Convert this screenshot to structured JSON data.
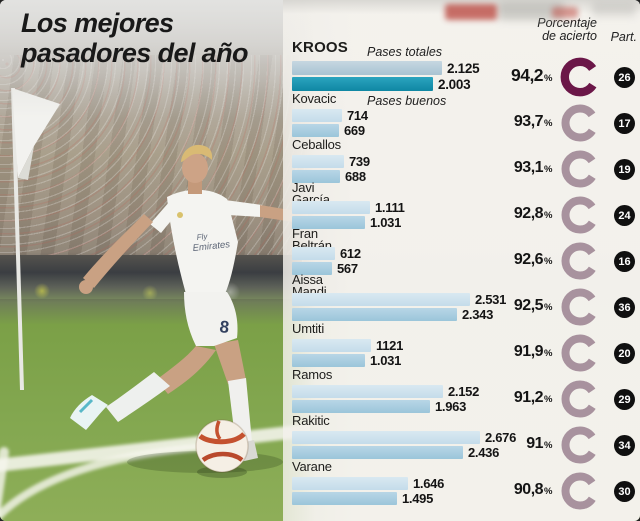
{
  "title": {
    "line1": "Los mejores",
    "line2": "pasadores del año"
  },
  "columns": {
    "pct_line1": "Porcentaje",
    "pct_line2": "de acierto",
    "part": "Part."
  },
  "legend": {
    "total": "Pases totales",
    "good": "Pases buenos"
  },
  "misc": {
    "percent_sign": "%"
  },
  "photo": {
    "jersey_sponsor_line1": "Fly",
    "jersey_sponsor_line2": "Emirates",
    "shorts_number": "8"
  },
  "colors": {
    "panel_bg": "#f3f1ec",
    "bar_total": "#cfe3ee",
    "bar_good": "#a9cee1",
    "bar_total_highlight": "#b9cfdc",
    "bar_good_highlight": "#1f97b1",
    "donut": "#a8929e",
    "donut_highlight": "#6b1748",
    "part_badge": "#101010",
    "text": "#1d1d1b",
    "pitch_green": "#7fa24b",
    "ball_accent": "#c4512f"
  },
  "chart_data": {
    "type": "bar",
    "orientation": "horizontal",
    "title": "Los mejores pasadores del año",
    "series_labels": [
      "Pases totales",
      "Pases buenos"
    ],
    "axis_max": 2700,
    "players": [
      {
        "name": "KROOS",
        "highlight": true,
        "total": 2125,
        "good": 2003,
        "total_display": "2.125",
        "good_display": "2.003",
        "accuracy_pct": 94.2,
        "accuracy_display": "94,2",
        "matches": 26
      },
      {
        "name": "Kovacic",
        "total": 714,
        "good": 669,
        "total_display": "714",
        "good_display": "669",
        "accuracy_pct": 93.7,
        "accuracy_display": "93,7",
        "matches": 17
      },
      {
        "name": "Ceballos",
        "total": 739,
        "good": 688,
        "total_display": "739",
        "good_display": "688",
        "accuracy_pct": 93.1,
        "accuracy_display": "93,1",
        "matches": 19
      },
      {
        "name": "Javi García",
        "name_lines": [
          "Javi",
          "García"
        ],
        "total": 1111,
        "good": 1031,
        "total_display": "1.111",
        "good_display": "1.031",
        "accuracy_pct": 92.8,
        "accuracy_display": "92,8",
        "matches": 24
      },
      {
        "name": "Fran Beltrán",
        "name_lines": [
          "Fran",
          "Beltrán"
        ],
        "total": 612,
        "good": 567,
        "total_display": "612",
        "good_display": "567",
        "accuracy_pct": 92.6,
        "accuracy_display": "92,6",
        "matches": 16
      },
      {
        "name": "Aissa Mandi",
        "name_lines": [
          "Aissa",
          "Mandi"
        ],
        "total": 2531,
        "good": 2343,
        "total_display": "2.531",
        "good_display": "2.343",
        "accuracy_pct": 92.5,
        "accuracy_display": "92,5",
        "matches": 36
      },
      {
        "name": "Umtiti",
        "total": 1121,
        "good": 1031,
        "total_display": "1121",
        "good_display": "1.031",
        "accuracy_pct": 91.9,
        "accuracy_display": "91,9",
        "matches": 20
      },
      {
        "name": "Ramos",
        "total": 2152,
        "good": 1963,
        "total_display": "2.152",
        "good_display": "1.963",
        "accuracy_pct": 91.2,
        "accuracy_display": "91,2",
        "matches": 29
      },
      {
        "name": "Rakitic",
        "total": 2676,
        "good": 2436,
        "total_display": "2.676",
        "good_display": "2.436",
        "accuracy_pct": 91.0,
        "accuracy_display": "91",
        "matches": 34
      },
      {
        "name": "Varane",
        "total": 1646,
        "good": 1495,
        "total_display": "1.646",
        "good_display": "1.495",
        "accuracy_pct": 90.8,
        "accuracy_display": "90,8",
        "matches": 30
      }
    ]
  }
}
